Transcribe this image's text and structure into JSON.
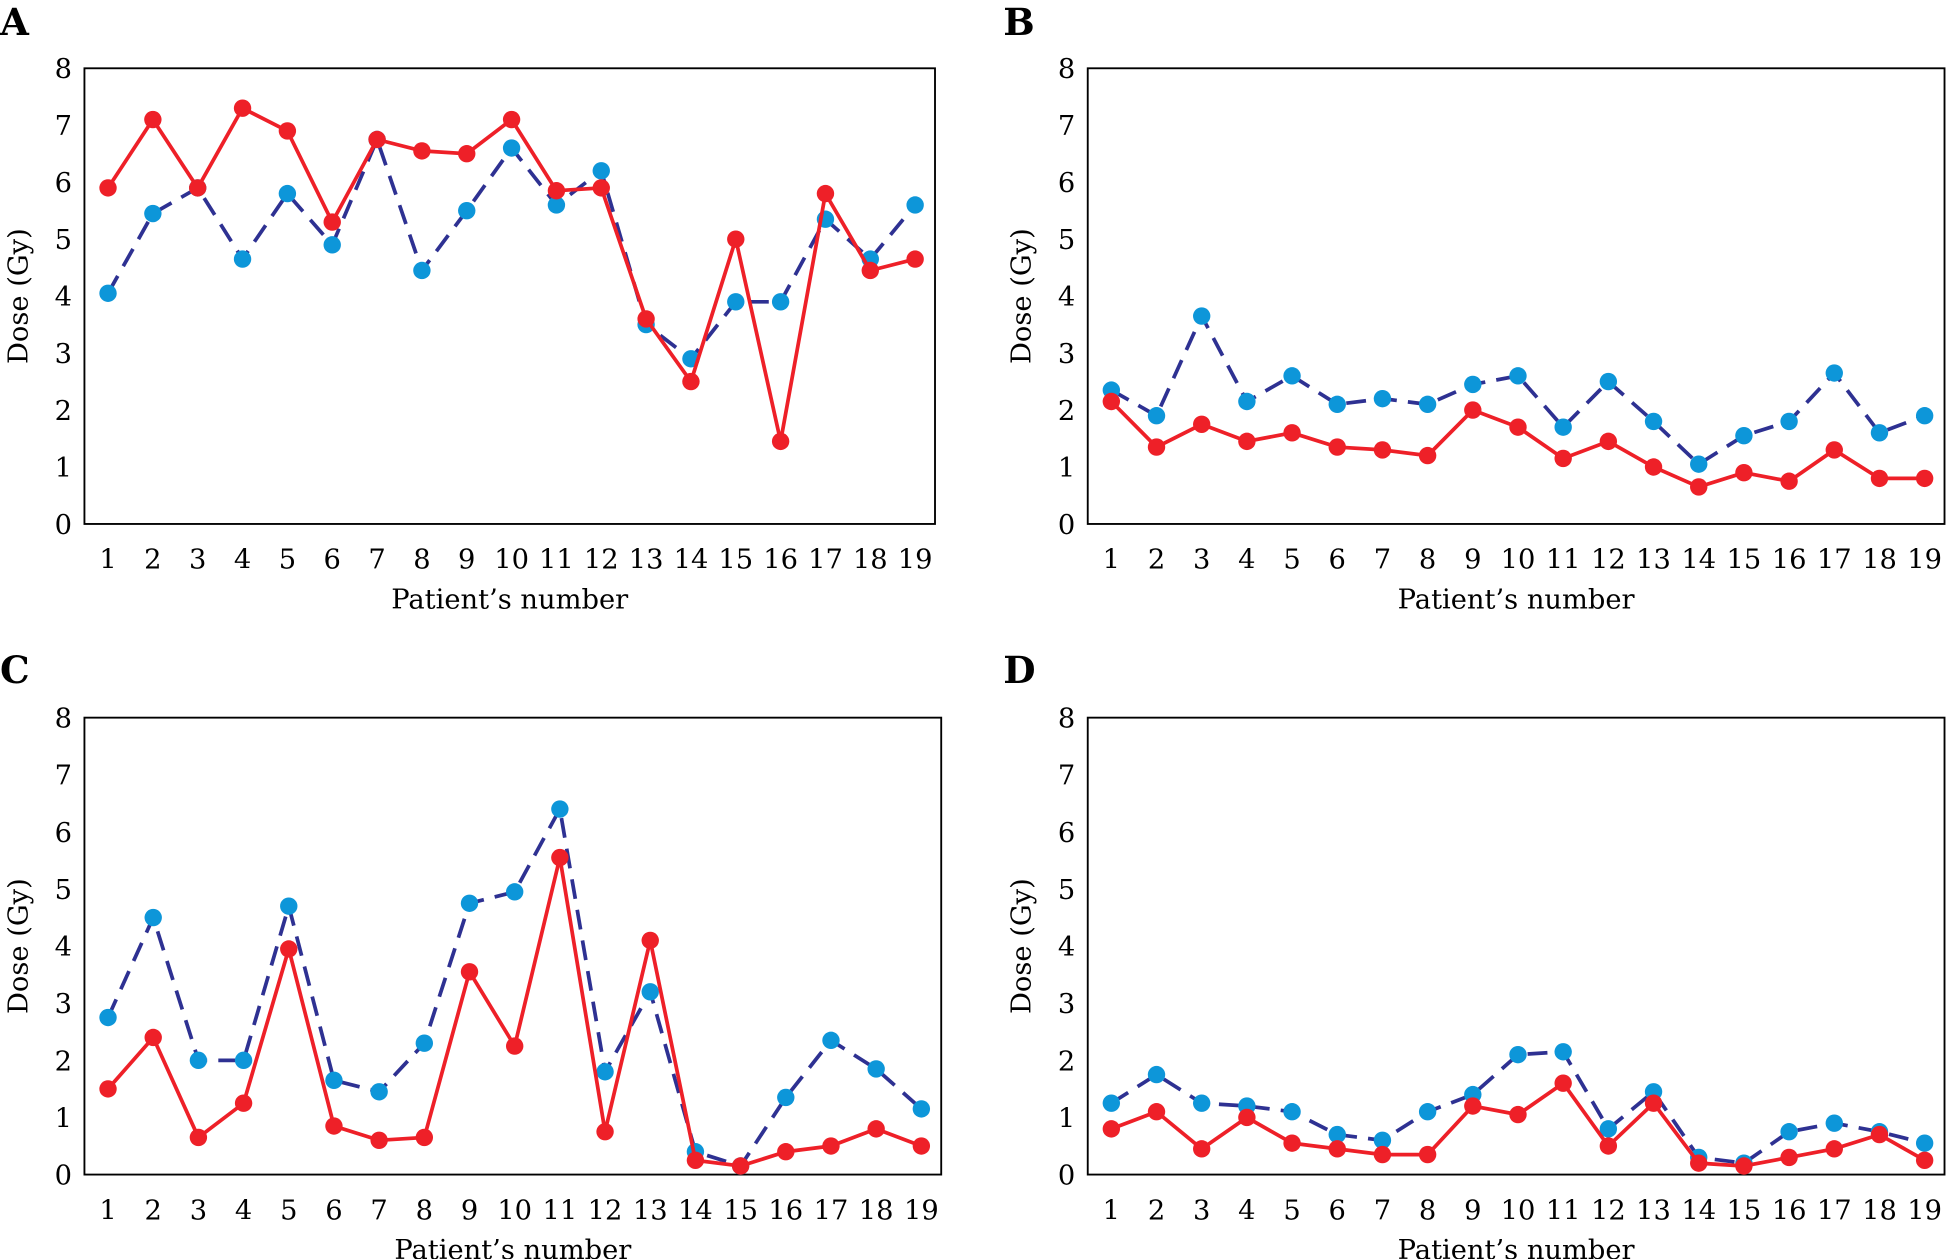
{
  "colors": {
    "red_series": "#ee2028",
    "blue_series": "#0d96d9",
    "blue_line": "#2e3192"
  },
  "chart_data": [
    {
      "panel": "A",
      "type": "line",
      "xlabel": "Patient’s number",
      "ylabel": "Dose (Gy)",
      "ylim": [
        0,
        8
      ],
      "yticks": [
        0,
        1,
        2,
        3,
        4,
        5,
        6,
        7,
        8
      ],
      "grid": false,
      "x": [
        1,
        2,
        3,
        4,
        5,
        6,
        7,
        8,
        9,
        10,
        11,
        12,
        13,
        14,
        15,
        16,
        17,
        18,
        19
      ],
      "series": [
        {
          "style": "solid-red",
          "values": [
            5.9,
            7.1,
            5.9,
            7.3,
            6.9,
            5.3,
            6.75,
            6.55,
            6.5,
            7.1,
            5.85,
            5.9,
            3.6,
            2.5,
            5.0,
            1.45,
            5.8,
            4.45,
            4.65
          ]
        },
        {
          "style": "dashed-blue",
          "values": [
            4.05,
            5.45,
            5.9,
            4.65,
            5.8,
            4.9,
            6.75,
            4.45,
            5.5,
            6.6,
            5.6,
            6.2,
            3.5,
            2.9,
            3.9,
            3.9,
            5.35,
            4.65,
            5.6
          ]
        }
      ]
    },
    {
      "panel": "B",
      "type": "line",
      "xlabel": "Patient’s number",
      "ylabel": "Dose (Gy)",
      "ylim": [
        0,
        8
      ],
      "yticks": [
        0,
        1,
        2,
        3,
        4,
        5,
        6,
        7,
        8
      ],
      "grid": false,
      "x": [
        1,
        2,
        3,
        4,
        5,
        6,
        7,
        8,
        9,
        10,
        11,
        12,
        13,
        14,
        15,
        16,
        17,
        18,
        19
      ],
      "series": [
        {
          "style": "solid-red",
          "values": [
            2.15,
            1.35,
            1.75,
            1.45,
            1.6,
            1.35,
            1.3,
            1.2,
            2.0,
            1.7,
            1.15,
            1.45,
            1.0,
            0.65,
            0.9,
            0.75,
            1.3,
            0.8,
            0.8
          ]
        },
        {
          "style": "dashed-blue",
          "values": [
            2.35,
            1.9,
            3.65,
            2.15,
            2.6,
            2.1,
            2.2,
            2.1,
            2.45,
            2.6,
            1.7,
            2.5,
            1.8,
            1.05,
            1.55,
            1.8,
            2.65,
            1.6,
            1.9
          ]
        }
      ]
    },
    {
      "panel": "C",
      "type": "line",
      "xlabel": "Patient’s number",
      "ylabel": "Dose (Gy)",
      "ylim": [
        0,
        8
      ],
      "yticks": [
        0,
        1,
        2,
        3,
        4,
        5,
        6,
        7,
        8
      ],
      "grid": false,
      "x": [
        1,
        2,
        3,
        4,
        5,
        6,
        7,
        8,
        9,
        10,
        11,
        12,
        13,
        14,
        15,
        16,
        17,
        18,
        19
      ],
      "series": [
        {
          "style": "solid-red",
          "values": [
            1.5,
            2.4,
            0.65,
            1.25,
            3.95,
            0.85,
            0.6,
            0.65,
            3.55,
            2.25,
            5.55,
            0.75,
            4.1,
            0.25,
            0.15,
            0.4,
            0.5,
            0.8,
            0.5
          ]
        },
        {
          "style": "dashed-blue",
          "values": [
            2.75,
            4.5,
            2.0,
            2.0,
            4.7,
            1.65,
            1.45,
            2.3,
            4.75,
            4.95,
            6.4,
            1.8,
            3.2,
            0.4,
            0.15,
            1.35,
            2.35,
            1.85,
            1.15
          ]
        }
      ]
    },
    {
      "panel": "D",
      "type": "line",
      "xlabel": "Patient’s number",
      "ylabel": "Dose (Gy)",
      "ylim": [
        0,
        8
      ],
      "yticks": [
        0,
        1,
        2,
        3,
        4,
        5,
        6,
        7,
        8
      ],
      "grid": false,
      "x": [
        1,
        2,
        3,
        4,
        5,
        6,
        7,
        8,
        9,
        10,
        11,
        12,
        13,
        14,
        15,
        16,
        17,
        18,
        19
      ],
      "series": [
        {
          "style": "solid-red",
          "values": [
            0.8,
            1.1,
            0.45,
            1.0,
            0.55,
            0.45,
            0.35,
            0.35,
            1.2,
            1.05,
            1.6,
            0.5,
            1.25,
            0.2,
            0.15,
            0.3,
            0.45,
            0.7,
            0.25
          ]
        },
        {
          "style": "dashed-blue",
          "values": [
            1.25,
            1.75,
            1.25,
            1.2,
            1.1,
            0.7,
            0.6,
            1.1,
            1.4,
            2.1,
            2.15,
            0.8,
            1.45,
            0.3,
            0.2,
            0.75,
            0.9,
            0.75,
            0.55
          ]
        }
      ]
    }
  ]
}
